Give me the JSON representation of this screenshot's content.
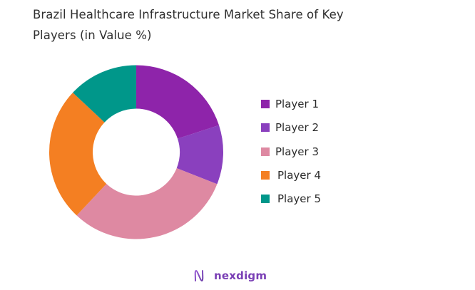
{
  "chart_data": {
    "type": "pie",
    "variant": "donut",
    "title": "Brazil Healthcare Infrastructure Market Share of Key Players (in Value %)",
    "categories": [
      "Player 1",
      "Player 2",
      "Player 3",
      "Player 4",
      "Player 5"
    ],
    "values": [
      20,
      11,
      31,
      25,
      13
    ],
    "colors": [
      "#8E24AA",
      "#8A40BE",
      "#DE89A2",
      "#F47F22",
      "#00978A"
    ],
    "start_angle_deg": 0,
    "direction": "clockwise",
    "legend_position": "right"
  },
  "title": {
    "line1": "Brazil Healthcare Infrastructure Market Share of Key",
    "line2": "Players (in Value %)"
  },
  "legend": {
    "items": [
      {
        "label": "Player 1",
        "color": "#8E24AA"
      },
      {
        "label": "Player 2",
        "color": "#8A40BE"
      },
      {
        "label": "Player 3",
        "color": "#DE89A2"
      },
      {
        "label": "Player 4",
        "color": "#F47F22"
      },
      {
        "label": "Player 5",
        "color": "#00978A"
      }
    ]
  },
  "branding": {
    "logo_text": "nexdigm",
    "logo_icon": "nexdigm-wave-n-icon"
  }
}
